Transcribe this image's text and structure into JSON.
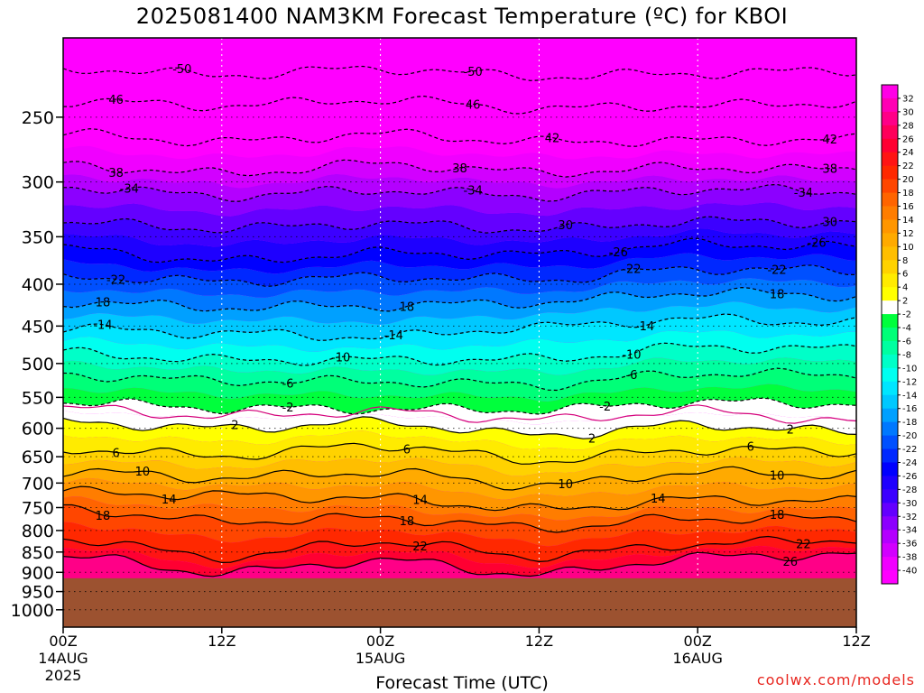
{
  "chart_data": {
    "type": "heatmap",
    "title": "2025081400 NAM3KM Forecast Temperature (ºC) for KBOI",
    "xlabel": "Forecast Time (UTC)",
    "ylabel": "",
    "y_axis": {
      "scale": "log",
      "reversed": true,
      "range": [
        1050,
        200
      ],
      "ticks": [
        250,
        300,
        350,
        400,
        450,
        500,
        550,
        600,
        650,
        700,
        750,
        800,
        850,
        900,
        950,
        1000
      ]
    },
    "x_axis": {
      "range_hours": [
        0,
        60
      ],
      "ticks": [
        {
          "hour": 0,
          "label": "00Z",
          "sub": "14AUG",
          "sub2": "2025"
        },
        {
          "hour": 12,
          "label": "12Z",
          "sub": "",
          "sub2": ""
        },
        {
          "hour": 24,
          "label": "00Z",
          "sub": "15AUG",
          "sub2": ""
        },
        {
          "hour": 36,
          "label": "12Z",
          "sub": "",
          "sub2": ""
        },
        {
          "hour": 48,
          "label": "00Z",
          "sub": "16AUG",
          "sub2": ""
        },
        {
          "hour": 60,
          "label": "12Z",
          "sub": "",
          "sub2": ""
        }
      ]
    },
    "surface_pressure_hpa": 915,
    "color_scale": {
      "labels": [
        32,
        30,
        28,
        26,
        24,
        22,
        20,
        18,
        16,
        14,
        12,
        10,
        8,
        6,
        4,
        2,
        -2,
        -4,
        -6,
        -8,
        -10,
        -12,
        -14,
        -16,
        -18,
        -20,
        -22,
        -24,
        -26,
        -28,
        -30,
        -32,
        -34,
        -36,
        -38,
        -40
      ],
      "colors": [
        "#ff00e6",
        "#ff00b4",
        "#ff0087",
        "#ff005a",
        "#ff0032",
        "#ff1414",
        "#ff2800",
        "#ff4600",
        "#ff6400",
        "#ff7d00",
        "#ff9600",
        "#ffaa00",
        "#ffbe00",
        "#ffd200",
        "#ffeb00",
        "#ffff00",
        "#ffffff",
        "#00ff3c",
        "#00ff78",
        "#00ffa0",
        "#00ffc8",
        "#00fff0",
        "#00e6ff",
        "#00c8ff",
        "#00a0ff",
        "#0078ff",
        "#0050ff",
        "#0028ff",
        "#0000ff",
        "#1e00ff",
        "#3c00ff",
        "#6400ff",
        "#8c00ff",
        "#b400ff",
        "#d200ff",
        "#f000ff",
        "#ff00ff"
      ]
    },
    "contours": [
      {
        "value": -50,
        "label": "-50",
        "style": "dashed",
        "times": [
          0,
          12,
          24,
          36,
          48,
          60
        ],
        "pressures": [
          218,
          222,
          218,
          223,
          221,
          219
        ]
      },
      {
        "value": -46,
        "label": "46",
        "style": "dashed",
        "times": [
          0,
          12,
          24,
          36,
          48,
          60
        ],
        "pressures": [
          239,
          242,
          238,
          244,
          242,
          240
        ]
      },
      {
        "value": -42,
        "label": "42",
        "style": "dashed",
        "times": [
          0,
          12,
          24,
          36,
          48,
          60
        ],
        "pressures": [
          262,
          268,
          262,
          268,
          267,
          266
        ]
      },
      {
        "value": -38,
        "label": "38",
        "style": "dashed",
        "times": [
          0,
          12,
          24,
          36,
          48,
          60
        ],
        "pressures": [
          286,
          293,
          285,
          292,
          288,
          290
        ]
      },
      {
        "value": -34,
        "label": "-34",
        "style": "dashed",
        "times": [
          0,
          12,
          24,
          36,
          48,
          60
        ],
        "pressures": [
          304,
          312,
          307,
          312,
          306,
          308
        ]
      },
      {
        "value": -30,
        "label": "30",
        "style": "dashed",
        "times": [
          0,
          12,
          24,
          36,
          48,
          60
        ],
        "pressures": [
          336,
          342,
          337,
          343,
          335,
          336
        ]
      },
      {
        "value": -26,
        "label": "-26",
        "style": "dashed",
        "times": [
          0,
          12,
          24,
          36,
          48,
          60
        ],
        "pressures": [
          362,
          375,
          366,
          368,
          357,
          360
        ]
      },
      {
        "value": -22,
        "label": "-22",
        "style": "dashed",
        "times": [
          0,
          12,
          24,
          36,
          48,
          60
        ],
        "pressures": [
          391,
          397,
          392,
          395,
          383,
          385
        ]
      },
      {
        "value": -18,
        "label": "18",
        "style": "dashed",
        "times": [
          0,
          12,
          24,
          36,
          48,
          60
        ],
        "pressures": [
          420,
          427,
          425,
          421,
          409,
          413
        ]
      },
      {
        "value": -14,
        "label": "-14",
        "style": "dashed",
        "times": [
          0,
          12,
          24,
          36,
          48,
          60
        ],
        "pressures": [
          453,
          459,
          464,
          451,
          441,
          446
        ]
      },
      {
        "value": -10,
        "label": "-10",
        "style": "dashed",
        "times": [
          0,
          12,
          24,
          36,
          48,
          60
        ],
        "pressures": [
          485,
          495,
          495,
          494,
          477,
          480
        ]
      },
      {
        "value": -6,
        "label": "-6",
        "style": "dashed",
        "times": [
          0,
          12,
          24,
          36,
          48,
          60
        ],
        "pressures": [
          516,
          525,
          526,
          531,
          514,
          516
        ]
      },
      {
        "value": -2,
        "label": "-2",
        "style": "dashed",
        "times": [
          0,
          12,
          24,
          36,
          48,
          60
        ],
        "pressures": [
          557,
          567,
          568,
          570,
          557,
          560
        ]
      },
      {
        "value": 0,
        "label": "",
        "style": "magenta",
        "times": [
          0,
          12,
          24,
          36,
          48,
          60
        ],
        "pressures": [
          567,
          580,
          572,
          586,
          571,
          590
        ]
      },
      {
        "value": 2,
        "label": "2",
        "style": "solid",
        "times": [
          0,
          12,
          24,
          36,
          48,
          60
        ],
        "pressures": [
          589,
          600,
          590,
          612,
          594,
          607
        ]
      },
      {
        "value": 6,
        "label": "6",
        "style": "solid",
        "times": [
          0,
          12,
          24,
          36,
          48,
          60
        ],
        "pressures": [
          636,
          648,
          629,
          657,
          637,
          640
        ]
      },
      {
        "value": 10,
        "label": "10",
        "style": "solid",
        "times": [
          0,
          12,
          24,
          36,
          48,
          60
        ],
        "pressures": [
          677,
          690,
          679,
          705,
          679,
          683
        ]
      },
      {
        "value": 14,
        "label": "14",
        "style": "solid",
        "times": [
          0,
          12,
          24,
          36,
          48,
          60
        ],
        "pressures": [
          718,
          724,
          731,
          754,
          733,
          737
        ]
      },
      {
        "value": 18,
        "label": "18",
        "style": "solid",
        "times": [
          0,
          12,
          24,
          36,
          48,
          60
        ],
        "pressures": [
          752,
          780,
          772,
          794,
          773,
          775
        ]
      },
      {
        "value": 22,
        "label": "22",
        "style": "solid",
        "times": [
          0,
          12,
          24,
          36,
          48,
          60
        ],
        "pressures": [
          818,
          862,
          825,
          860,
          831,
          820
        ]
      },
      {
        "value": 26,
        "label": "26",
        "style": "solid",
        "times": [
          0,
          12,
          24,
          36,
          48,
          60
        ],
        "pressures": [
          860,
          900,
          870,
          905,
          862,
          855
        ]
      }
    ],
    "contour_label_hours": {
      "-50": [
        9,
        31
      ],
      "46": [
        4,
        31
      ],
      "42": [
        37,
        58
      ],
      "38": [
        4,
        30,
        58
      ],
      "-34": [
        5,
        31,
        56
      ],
      "30": [
        38,
        58
      ],
      "-26": [
        42,
        57
      ],
      "-22": [
        4,
        43,
        54
      ],
      "18": [
        3,
        26,
        54
      ],
      "-14": [
        3,
        25,
        44
      ],
      "-10": [
        21,
        43
      ],
      "-6": [
        17,
        43
      ],
      "-2": [
        17,
        41
      ],
      "2": [
        13,
        40,
        55
      ],
      "6": [
        4,
        26,
        52
      ],
      "10": [
        6,
        38,
        54
      ],
      "14": [
        8,
        27,
        45
      ],
      "22": [
        27,
        56
      ],
      "26": [
        55
      ]
    }
  },
  "credit": "coolwx.com/models"
}
